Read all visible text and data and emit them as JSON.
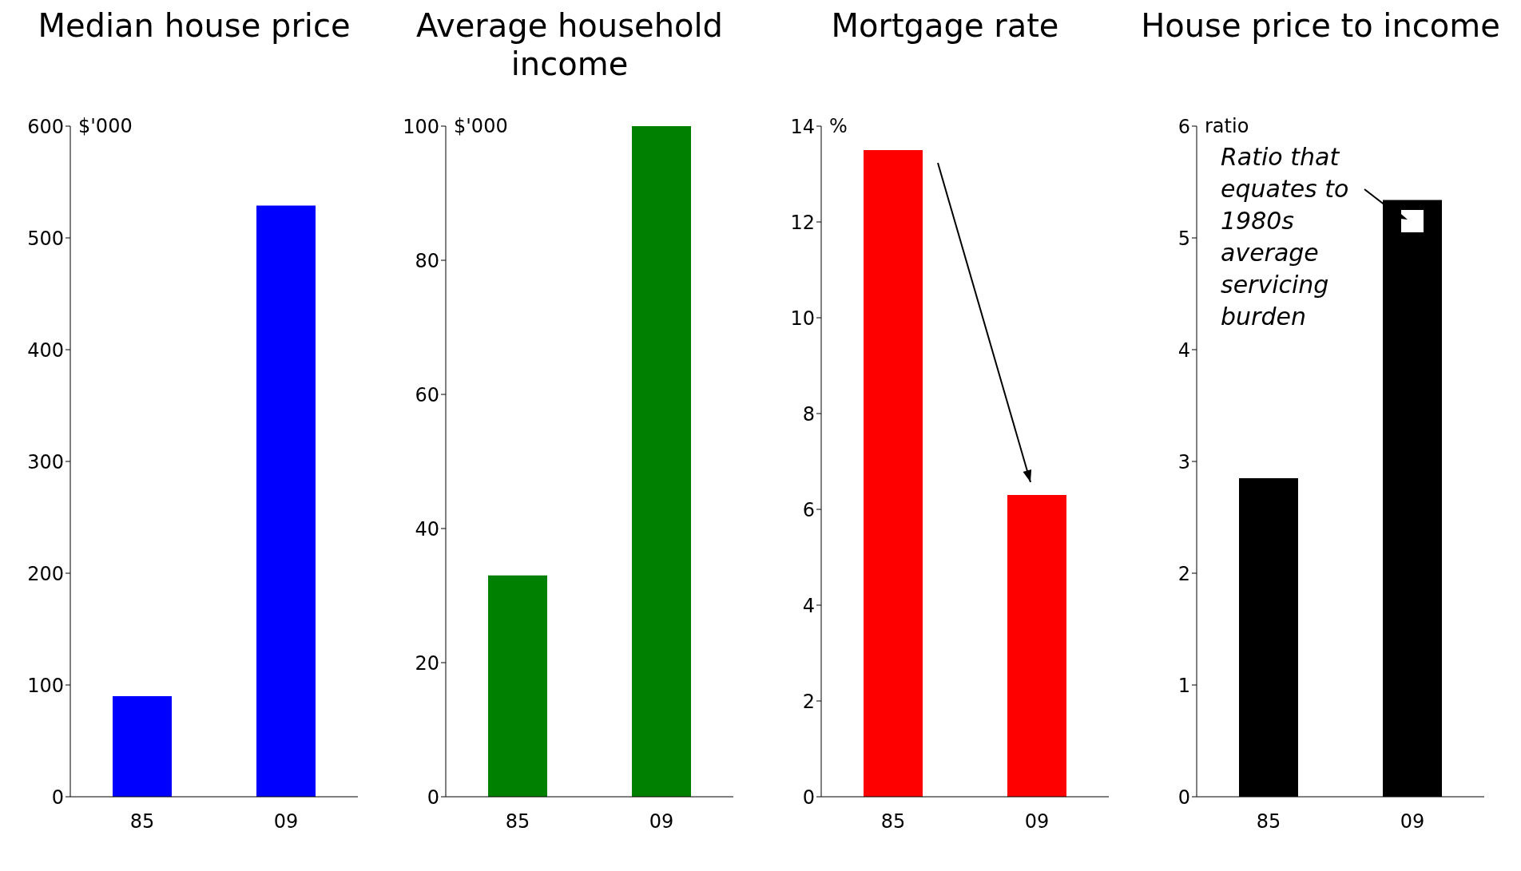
{
  "chart_data": [
    {
      "type": "bar",
      "title": "Median house price",
      "ylabel": "$'000",
      "categories": [
        "85",
        "09"
      ],
      "series": [
        {
          "color": "#0000ff",
          "values": [
            90,
            529
          ]
        }
      ],
      "ylim": [
        0,
        600
      ],
      "yticks": [
        0,
        100,
        200,
        300,
        400,
        500,
        600
      ],
      "grid": false,
      "legend": false
    },
    {
      "type": "bar",
      "title": "Average household income",
      "ylabel": "$'000",
      "categories": [
        "85",
        "09"
      ],
      "series": [
        {
          "color": "#008000",
          "values": [
            33,
            100
          ]
        }
      ],
      "ylim": [
        0,
        100
      ],
      "yticks": [
        0,
        20,
        40,
        60,
        80,
        100
      ],
      "grid": false,
      "legend": false
    },
    {
      "type": "bar",
      "title": "Mortgage rate",
      "ylabel": "%",
      "categories": [
        "85",
        "09"
      ],
      "series": [
        {
          "color": "#ff0000",
          "values": [
            13.5,
            6.3
          ]
        }
      ],
      "ylim": [
        0,
        14
      ],
      "yticks": [
        0,
        2,
        4,
        6,
        8,
        10,
        12,
        14
      ],
      "grid": false,
      "legend": false
    },
    {
      "type": "bar",
      "title": "House price to income",
      "ylabel": "ratio",
      "categories": [
        "85",
        "09"
      ],
      "series": [
        {
          "color": "#000000",
          "values": [
            2.85,
            5.34
          ]
        },
        {
          "type": "scatter",
          "color": "#ffffff",
          "values": [
            null,
            5.15
          ],
          "marker": "square"
        }
      ],
      "ylim": [
        0,
        6
      ],
      "yticks": [
        0,
        1,
        2,
        3,
        4,
        5,
        6
      ],
      "grid": false,
      "legend": false,
      "annotations": [
        {
          "text": "Ratio that equates to 1980s average servicing burden",
          "x": "09",
          "y": 5.15
        }
      ]
    }
  ]
}
